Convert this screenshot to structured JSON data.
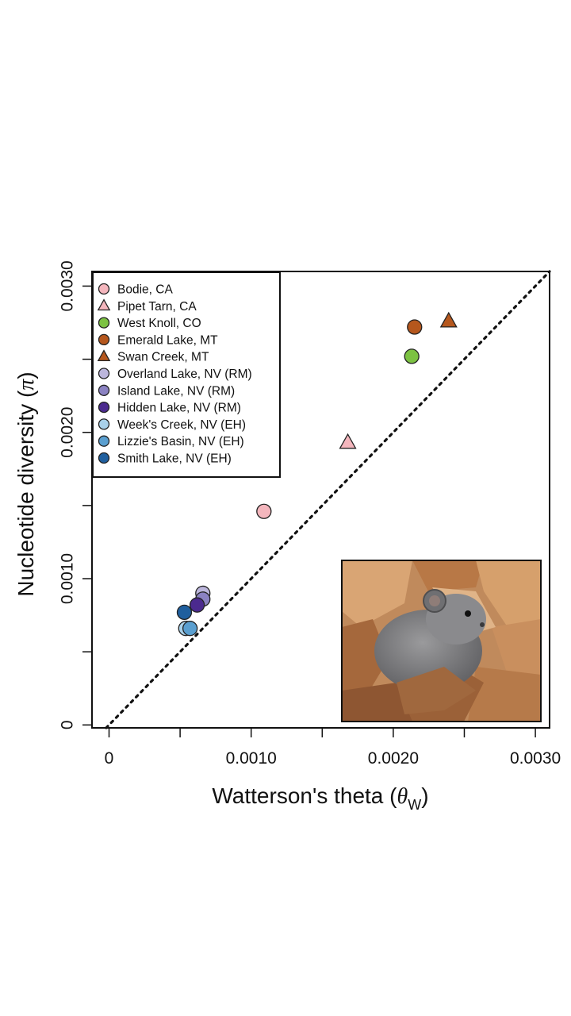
{
  "chart_data": {
    "type": "scatter",
    "xlabel": "Watterson's theta (θW)",
    "ylabel": "Nucleotide diversity (π)",
    "xlabel_parts": {
      "main": "Watterson's theta (",
      "symbol": "θ",
      "subscript": "W",
      "close": ")"
    },
    "ylabel_parts": {
      "main": "Nucleotide diversity (",
      "symbol": "π",
      "close": ")"
    },
    "xlim": [
      -0.00012,
      0.0031
    ],
    "ylim": [
      -2e-05,
      0.0031
    ],
    "x_ticks": [
      {
        "value": 0,
        "label": "0"
      },
      {
        "value": 0.0005,
        "label": ""
      },
      {
        "value": 0.001,
        "label": "0.0010"
      },
      {
        "value": 0.0015,
        "label": ""
      },
      {
        "value": 0.002,
        "label": "0.0020"
      },
      {
        "value": 0.0025,
        "label": ""
      },
      {
        "value": 0.003,
        "label": "0.0030"
      }
    ],
    "y_ticks": [
      {
        "value": 0,
        "label": "0"
      },
      {
        "value": 0.0005,
        "label": ""
      },
      {
        "value": 0.001,
        "label": "0.0010"
      },
      {
        "value": 0.0015,
        "label": ""
      },
      {
        "value": 0.002,
        "label": "0.0020"
      },
      {
        "value": 0.0025,
        "label": ""
      },
      {
        "value": 0.003,
        "label": "0.0030"
      }
    ],
    "reference_line": {
      "type": "y = x",
      "style": "dotted"
    },
    "grid": false,
    "legend_position": "top-left",
    "series": [
      {
        "name": "Bodie, CA",
        "marker": "circle",
        "color": "#f4b6bd",
        "points": [
          [
            0.00109,
            0.00146
          ]
        ]
      },
      {
        "name": "Pipet Tarn, CA",
        "marker": "triangle",
        "color": "#f4b6bd",
        "points": [
          [
            0.00168,
            0.00193
          ]
        ]
      },
      {
        "name": "West Knoll, CO",
        "marker": "circle",
        "color": "#7cc242",
        "points": [
          [
            0.00213,
            0.00252
          ]
        ]
      },
      {
        "name": "Emerald Lake, MT",
        "marker": "circle",
        "color": "#b5571d",
        "points": [
          [
            0.00215,
            0.00272
          ]
        ]
      },
      {
        "name": "Swan Creek, MT",
        "marker": "triangle",
        "color": "#b5571d",
        "points": [
          [
            0.00239,
            0.00276
          ]
        ]
      },
      {
        "name": "Overland Lake, NV (RM)",
        "marker": "circle",
        "color": "#bcb6dc",
        "points": [
          [
            0.00066,
            0.0009
          ]
        ]
      },
      {
        "name": "Island Lake, NV (RM)",
        "marker": "circle",
        "color": "#8b82c2",
        "points": [
          [
            0.00066,
            0.00086
          ]
        ]
      },
      {
        "name": "Hidden Lake, NV (RM)",
        "marker": "circle",
        "color": "#4b2a8e",
        "points": [
          [
            0.00062,
            0.00082
          ]
        ]
      },
      {
        "name": "Week's Creek, NV (EH)",
        "marker": "circle",
        "color": "#a9d1ea",
        "points": [
          [
            0.00054,
            0.00066
          ]
        ]
      },
      {
        "name": "Lizzie's Basin, NV (EH)",
        "marker": "circle",
        "color": "#5a9fd0",
        "points": [
          [
            0.00057,
            0.00066
          ]
        ]
      },
      {
        "name": "Smith Lake, NV (EH)",
        "marker": "circle",
        "color": "#1f5f9e",
        "points": [
          [
            0.00053,
            0.00077
          ]
        ]
      }
    ]
  },
  "inset_photo": {
    "subject": "pika-on-rocks"
  }
}
